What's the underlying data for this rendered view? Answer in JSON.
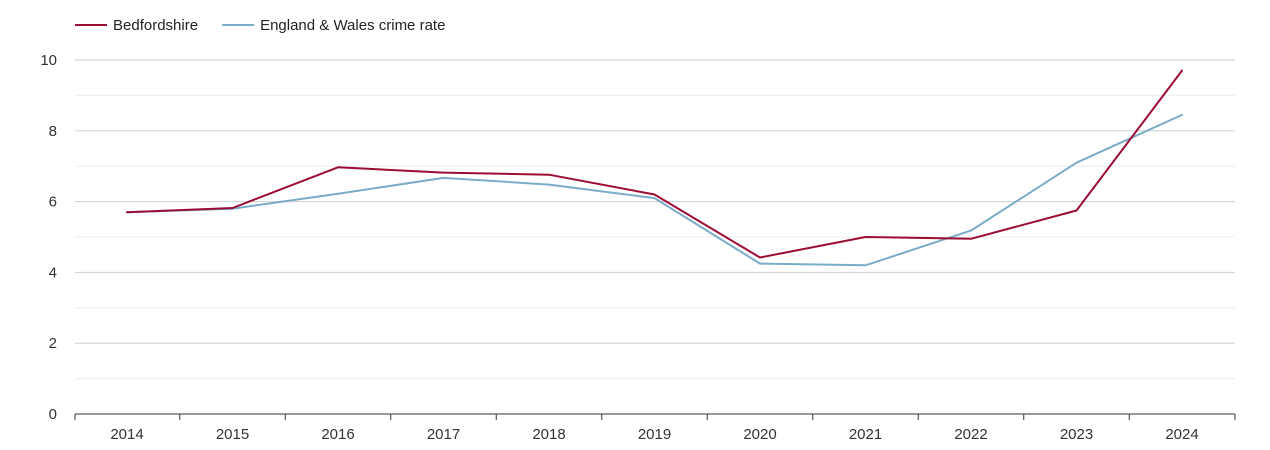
{
  "chart_data": {
    "type": "line",
    "title": "",
    "xlabel": "",
    "ylabel": "",
    "x": [
      "2014",
      "2015",
      "2016",
      "2017",
      "2018",
      "2019",
      "2020",
      "2021",
      "2022",
      "2023",
      "2024"
    ],
    "ylim": [
      0,
      10
    ],
    "yticks": [
      0,
      2,
      4,
      6,
      8,
      10
    ],
    "grid": true,
    "legend_position": "top-left",
    "series": [
      {
        "name": "Bedfordshire",
        "color": "#9b0d33",
        "values": [
          5.7,
          5.82,
          6.97,
          6.82,
          6.76,
          6.2,
          4.42,
          5.0,
          4.95,
          5.75,
          9.7
        ]
      },
      {
        "name": "England & Wales crime rate",
        "color": "#7aacc9",
        "values": [
          5.7,
          5.8,
          6.22,
          6.67,
          6.48,
          6.1,
          4.25,
          4.2,
          5.18,
          7.1,
          8.45
        ]
      }
    ]
  }
}
